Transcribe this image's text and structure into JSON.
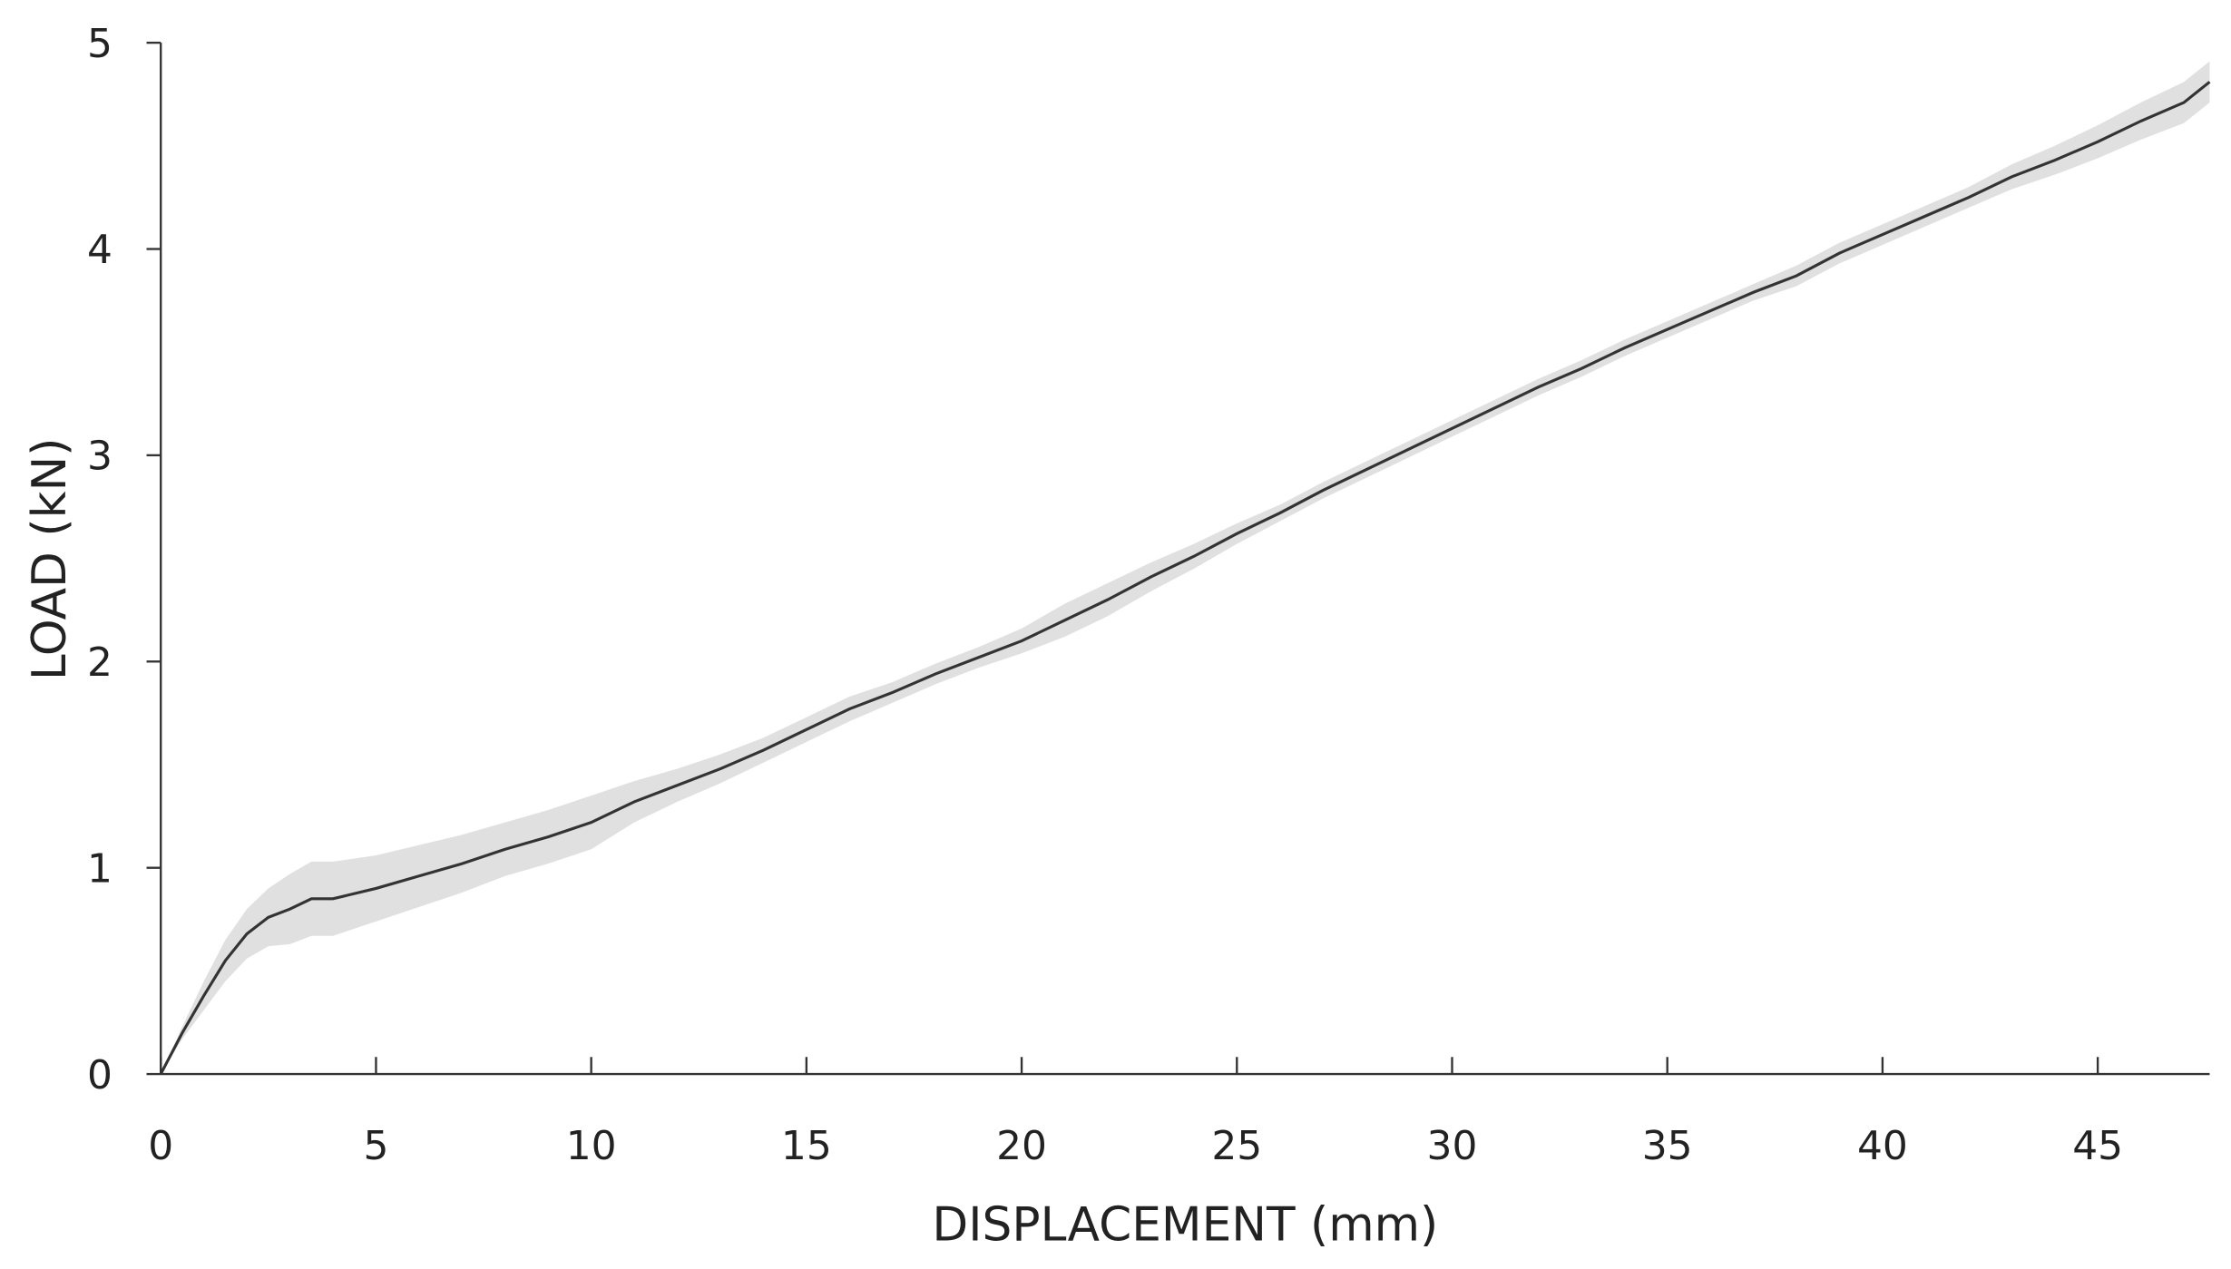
{
  "chart_data": {
    "type": "line",
    "xlabel": "DISPLACEMENT (mm)",
    "ylabel": "LOAD (kN)",
    "x": [
      0,
      0.5,
      1,
      1.5,
      2,
      2.5,
      3,
      3.5,
      4,
      5,
      6,
      7,
      8,
      9,
      10,
      11,
      12,
      13,
      14,
      15,
      16,
      17,
      18,
      19,
      20,
      21,
      22,
      23,
      24,
      25,
      26,
      27,
      28,
      29,
      30,
      31,
      32,
      33,
      34,
      35,
      36,
      37,
      38,
      39,
      40,
      41,
      42,
      43,
      44,
      45,
      46,
      47,
      47.6
    ],
    "series": [
      {
        "color": "#333333",
        "values": [
          0,
          0.2,
          0.38,
          0.55,
          0.68,
          0.76,
          0.8,
          0.85,
          0.85,
          0.9,
          0.96,
          1.02,
          1.09,
          1.15,
          1.22,
          1.32,
          1.4,
          1.48,
          1.57,
          1.67,
          1.77,
          1.85,
          1.94,
          2.02,
          2.1,
          2.2,
          2.3,
          2.41,
          2.51,
          2.62,
          2.72,
          2.83,
          2.93,
          3.03,
          3.13,
          3.23,
          3.33,
          3.42,
          3.52,
          3.61,
          3.7,
          3.79,
          3.87,
          3.98,
          4.07,
          4.16,
          4.25,
          4.35,
          4.43,
          4.52,
          4.62,
          4.71,
          4.81
        ]
      }
    ],
    "band": {
      "color": "#e0e0e0",
      "lower": [
        0,
        0.17,
        0.31,
        0.45,
        0.56,
        0.62,
        0.63,
        0.67,
        0.67,
        0.74,
        0.81,
        0.88,
        0.96,
        1.02,
        1.09,
        1.22,
        1.32,
        1.41,
        1.51,
        1.61,
        1.71,
        1.8,
        1.89,
        1.97,
        2.04,
        2.12,
        2.22,
        2.34,
        2.45,
        2.57,
        2.68,
        2.79,
        2.89,
        2.99,
        3.09,
        3.19,
        3.29,
        3.38,
        3.48,
        3.57,
        3.66,
        3.75,
        3.82,
        3.93,
        4.02,
        4.11,
        4.2,
        4.29,
        4.36,
        4.44,
        4.53,
        4.61,
        4.71
      ],
      "upper": [
        0,
        0.23,
        0.45,
        0.65,
        0.8,
        0.9,
        0.97,
        1.03,
        1.03,
        1.06,
        1.11,
        1.16,
        1.22,
        1.28,
        1.35,
        1.42,
        1.48,
        1.55,
        1.63,
        1.73,
        1.83,
        1.9,
        1.99,
        2.07,
        2.16,
        2.28,
        2.38,
        2.48,
        2.57,
        2.67,
        2.76,
        2.87,
        2.97,
        3.07,
        3.17,
        3.27,
        3.37,
        3.46,
        3.56,
        3.65,
        3.74,
        3.83,
        3.92,
        4.03,
        4.12,
        4.21,
        4.3,
        4.41,
        4.5,
        4.6,
        4.71,
        4.81,
        4.91
      ]
    },
    "xlim": [
      0,
      47.6
    ],
    "ylim": [
      0,
      5
    ],
    "xticks": [
      0,
      5,
      10,
      15,
      20,
      25,
      30,
      35,
      40,
      45
    ],
    "yticks": [
      0,
      1,
      2,
      3,
      4,
      5
    ]
  }
}
